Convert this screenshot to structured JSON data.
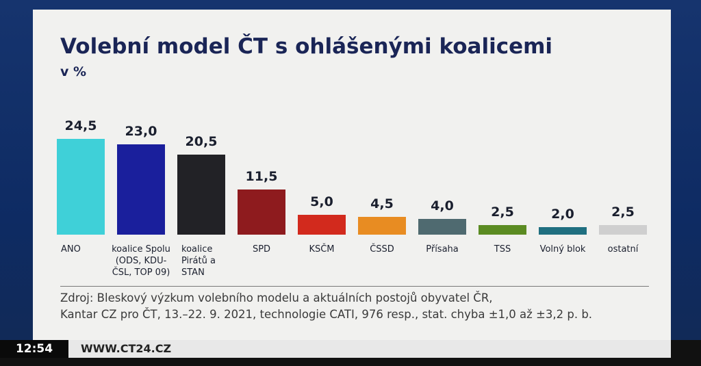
{
  "chart_data": {
    "type": "bar",
    "title": "Volební model ČT s ohlášenými koalicemi",
    "subtitle": "v %",
    "categories": [
      "ANO",
      "koalice Spolu (ODS, KDU-ČSL, TOP 09)",
      "koalice Pirátů a STAN",
      "SPD",
      "KSČM",
      "ČSSD",
      "Přísaha",
      "TSS",
      "Volný blok",
      "ostatní"
    ],
    "values": [
      24.5,
      23.0,
      20.5,
      11.5,
      5.0,
      4.5,
      4.0,
      2.5,
      2.0,
      2.5
    ],
    "value_labels": [
      "24,5",
      "23,0",
      "20,5",
      "11,5",
      "5,0",
      "4,5",
      "4,0",
      "2,5",
      "2,0",
      "2,5"
    ],
    "colors": [
      "#3fd0d8",
      "#1a1f9c",
      "#222226",
      "#8e1b1e",
      "#d22a1d",
      "#e88c22",
      "#4f6a70",
      "#5b8b22",
      "#1f6f80",
      "#cfcfcf"
    ],
    "source": [
      "Zdroj: Bleskový výzkum volebního modelu a aktuálních postojů obyvatel ČR,",
      "Kantar CZ pro ČT, 13.–22. 9. 2021, technologie CATI, 976 resp., stat. chyba ±1,0 až ±3,2 p. b."
    ]
  },
  "footer": {
    "time": "12:54",
    "url": "WWW.CT24.CZ"
  }
}
